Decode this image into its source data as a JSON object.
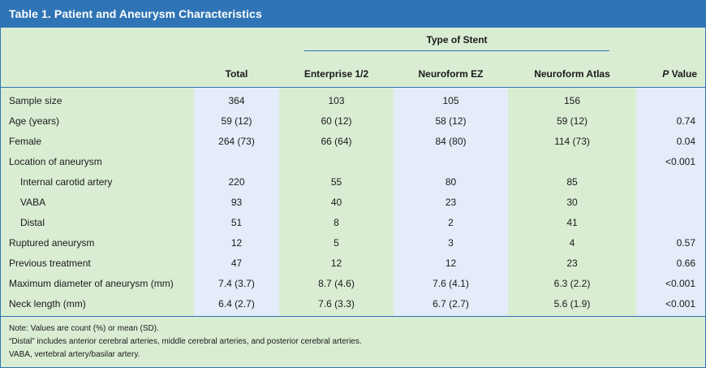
{
  "title": "Table 1. Patient and Aneurysm Characteristics",
  "group_label": "Type of Stent",
  "columns": {
    "total": "Total",
    "enterprise": "Enterprise 1/2",
    "neuroform_ez": "Neuroform EZ",
    "neuroform_atlas": "Neuroform Atlas",
    "p_italic": "P",
    "p_rest": " Value"
  },
  "rows": [
    {
      "label": "Sample size",
      "total": "364",
      "ent": "103",
      "nez": "105",
      "nat": "156",
      "p": ""
    },
    {
      "label": "Age (years)",
      "total": "59 (12)",
      "ent": "60 (12)",
      "nez": "58 (12)",
      "nat": "59 (12)",
      "p": "0.74"
    },
    {
      "label": "Female",
      "total": "264 (73)",
      "ent": "66 (64)",
      "nez": "84 (80)",
      "nat": "114 (73)",
      "p": "0.04"
    },
    {
      "label": "Location of aneurysm",
      "total": "",
      "ent": "",
      "nez": "",
      "nat": "",
      "p": "<0.001"
    },
    {
      "label": "Internal carotid artery",
      "total": "220",
      "ent": "55",
      "nez": "80",
      "nat": "85",
      "p": ""
    },
    {
      "label": "VABA",
      "total": "93",
      "ent": "40",
      "nez": "23",
      "nat": "30",
      "p": ""
    },
    {
      "label": "Distal",
      "total": "51",
      "ent": "8",
      "nez": "2",
      "nat": "41",
      "p": ""
    },
    {
      "label": "Ruptured aneurysm",
      "total": "12",
      "ent": "5",
      "nez": "3",
      "nat": "4",
      "p": "0.57"
    },
    {
      "label": "Previous treatment",
      "total": "47",
      "ent": "12",
      "nez": "12",
      "nat": "23",
      "p": "0.66"
    },
    {
      "label": "Maximum diameter of aneurysm (mm)",
      "total": "7.4 (3.7)",
      "ent": "8.7 (4.6)",
      "nez": "7.6 (4.1)",
      "nat": "6.3 (2.2)",
      "p": "<0.001"
    },
    {
      "label": "Neck length (mm)",
      "total": "6.4 (2.7)",
      "ent": "7.6 (3.3)",
      "nez": "6.7 (2.7)",
      "nat": "5.6 (1.9)",
      "p": "<0.001"
    }
  ],
  "notes": [
    "Note: Values are count (%) or mean (SD).",
    "“Distal” includes anterior cerebral arteries, middle cerebral arteries, and posterior cerebral arteries.",
    "VABA, vertebral artery/basilar artery."
  ],
  "colors": {
    "title_bar": "#2f74b5",
    "background": "#d9edd3",
    "column_shade": "#e3ecf8"
  }
}
